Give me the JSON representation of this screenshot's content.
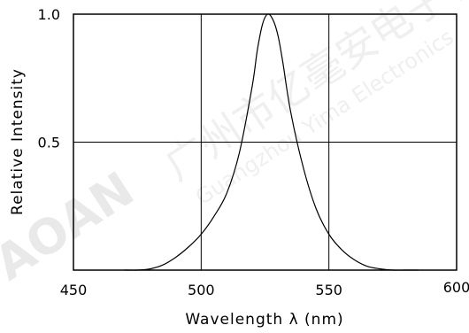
{
  "chart_data": {
    "type": "line",
    "xlabel": "Wavelength λ  (nm)",
    "ylabel": "Relative  Intensity",
    "xlim": [
      450,
      600
    ],
    "ylim": [
      0,
      1.0
    ],
    "x_ticks": [
      {
        "value": 450,
        "label": "450"
      },
      {
        "value": 500,
        "label": "500"
      },
      {
        "value": 550,
        "label": "550"
      },
      {
        "value": 600,
        "label": "600"
      }
    ],
    "y_ticks": [
      {
        "value": 0.5,
        "label": "0.5"
      },
      {
        "value": 1.0,
        "label": "1.0"
      }
    ],
    "grid": true,
    "series": [
      {
        "x": [
          470,
          475,
          480,
          485,
          490,
          495,
          500,
          505,
          510,
          515,
          520,
          522,
          524,
          526,
          528,
          530,
          532,
          535,
          540,
          545,
          550,
          555,
          560,
          565,
          570,
          575,
          580,
          585
        ],
        "y": [
          0.0,
          0.0,
          0.005,
          0.02,
          0.05,
          0.09,
          0.14,
          0.21,
          0.3,
          0.46,
          0.72,
          0.86,
          0.96,
          1.0,
          0.98,
          0.92,
          0.81,
          0.62,
          0.4,
          0.24,
          0.14,
          0.08,
          0.04,
          0.015,
          0.005,
          0.0,
          0.0,
          0.0
        ]
      }
    ]
  },
  "watermark": {
    "brand": "AOAN",
    "company_cn": "广州市亿毫安电子有限",
    "company_en": "Guangzhou Yima Electronics"
  }
}
